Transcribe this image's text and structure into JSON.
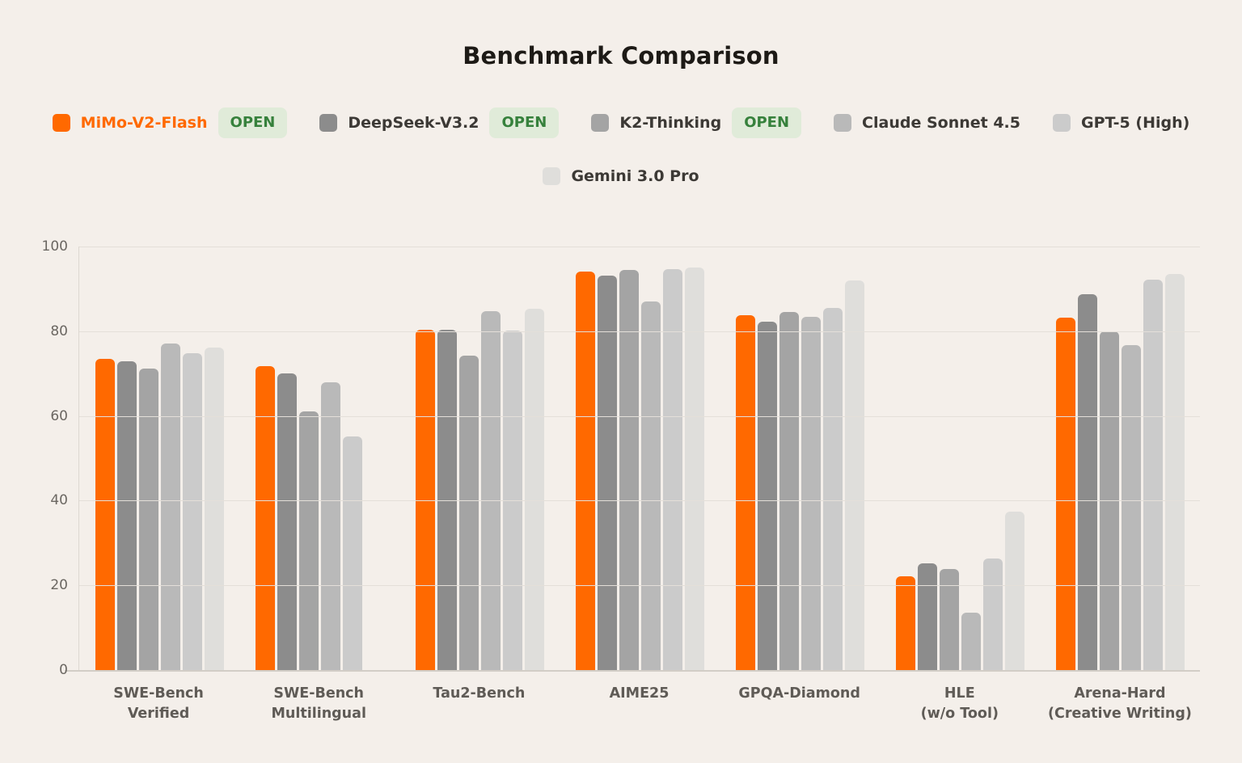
{
  "page": {
    "background_color": "#f4efea",
    "title": "Benchmark Comparison"
  },
  "legend": {
    "badge_label": "OPEN",
    "badge_bg_color": "#e0ebd9",
    "badge_text_color": "#36813c",
    "highlight_text_color": "#ff6900",
    "row_break_after": 5
  },
  "chart_data": {
    "type": "bar",
    "title": "Benchmark Comparison",
    "categories": [
      [
        "SWE-Bench",
        "Verified"
      ],
      [
        "SWE-Bench",
        "Multilingual"
      ],
      [
        "Tau2-Bench"
      ],
      [
        "AIME25"
      ],
      [
        "GPQA-Diamond"
      ],
      [
        "HLE",
        "(w/o Tool)"
      ],
      [
        "Arena-Hard",
        "(Creative Writing)"
      ]
    ],
    "series": [
      {
        "name": "MiMo-V2-Flash",
        "color": "#ff6900",
        "open_badge": true,
        "values": [
          73.4,
          71.8,
          80.4,
          94.1,
          83.8,
          22.1,
          83.3
        ]
      },
      {
        "name": "DeepSeek-V3.2",
        "color": "#8c8c8c",
        "open_badge": true,
        "values": [
          73.0,
          70.1,
          80.3,
          93.2,
          82.3,
          25.2,
          88.8
        ]
      },
      {
        "name": "K2-Thinking",
        "color": "#a4a4a4",
        "open_badge": true,
        "values": [
          71.2,
          61.0,
          74.3,
          94.4,
          84.5,
          23.9,
          80.0
        ]
      },
      {
        "name": "Claude Sonnet 4.5",
        "color": "#b9b9b9",
        "open_badge": false,
        "values": [
          77.2,
          67.9,
          84.7,
          87.0,
          83.5,
          13.6,
          76.8
        ]
      },
      {
        "name": "GPT-5 (High)",
        "color": "#cbcbcb",
        "open_badge": false,
        "values": [
          74.9,
          55.2,
          80.1,
          94.6,
          85.6,
          26.3,
          92.2
        ]
      },
      {
        "name": "Gemini 3.0 Pro",
        "color": "#dfdedb",
        "open_badge": false,
        "values": [
          76.2,
          null,
          85.4,
          95.0,
          91.9,
          37.5,
          93.6
        ]
      }
    ],
    "ylim": [
      0,
      100
    ],
    "yticks": [
      0,
      20,
      40,
      60,
      80,
      100
    ],
    "grid": "horizontal",
    "legend_position": "top",
    "xlabel": "",
    "ylabel": ""
  }
}
